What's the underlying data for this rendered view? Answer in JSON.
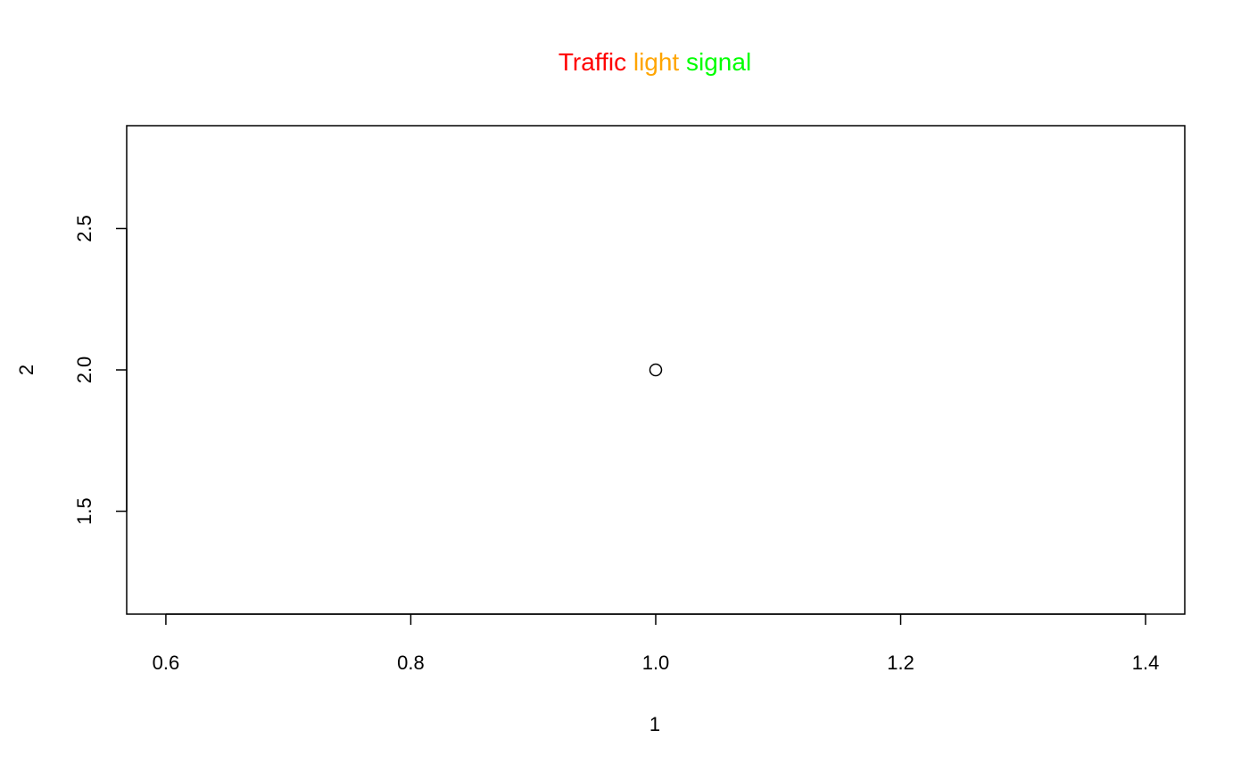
{
  "chart_data": {
    "type": "scatter",
    "title_words": [
      {
        "text": "Traffic",
        "color": "#ff0000"
      },
      {
        "text": "light",
        "color": "#ffa500"
      },
      {
        "text": "signal",
        "color": "#00ff00"
      }
    ],
    "xlabel": "1",
    "ylabel": "2",
    "xlim": [
      0.568,
      1.432
    ],
    "ylim": [
      1.136,
      2.864
    ],
    "x_ticks": [
      0.6,
      0.8,
      1.0,
      1.2,
      1.4
    ],
    "x_tick_labels": [
      "0.6",
      "0.8",
      "1.0",
      "1.2",
      "1.4"
    ],
    "y_ticks": [
      1.5,
      2.0,
      2.5
    ],
    "y_tick_labels": [
      "1.5",
      "2.0",
      "2.5"
    ],
    "points": [
      {
        "x": 1,
        "y": 2
      }
    ],
    "marker": "open-circle",
    "grid": false,
    "legend": "none"
  }
}
